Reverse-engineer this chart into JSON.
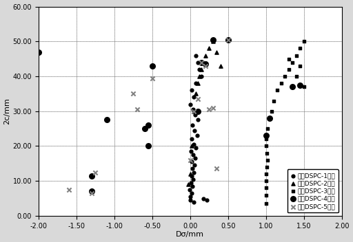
{
  "title": "",
  "xlabel": "Dσ/mm",
  "ylabel": "2c/mm",
  "xlim": [
    -2.0,
    2.0
  ],
  "ylim": [
    0.0,
    60.0
  ],
  "xticks": [
    -2.0,
    -1.5,
    -1.0,
    -0.5,
    0.0,
    0.5,
    1.0,
    1.5,
    2.0
  ],
  "yticks": [
    0.0,
    10.0,
    20.0,
    30.0,
    40.0,
    50.0,
    60.0
  ],
  "xtick_labels": [
    "-2.00",
    "-1.50",
    "-1.00",
    "-0.50",
    "0.00",
    "0.50",
    "1.00",
    "1.50",
    "2.00"
  ],
  "ytick_labels": [
    "0.00",
    "10.00",
    "20.00",
    "30.00",
    "40.00",
    "50.00",
    "60.00"
  ],
  "legend_labels": [
    "试样DSPC-1数据",
    "试样DSPC-2数据",
    "试样DSPC-3数据",
    "试样DSPC-4数据",
    "试样DSPC-5数据"
  ],
  "bg_color": "#d9d9d9",
  "plot_bg": "#ffffff",
  "series1_marker": "o",
  "series1_size": 12,
  "series1_x": [
    0.0,
    0.0,
    0.02,
    -0.01,
    0.03,
    0.01,
    0.04,
    0.02,
    0.05,
    0.03,
    0.06,
    0.02,
    0.07,
    0.04,
    0.01,
    0.08,
    0.05,
    0.02,
    0.09,
    0.06,
    0.03,
    0.1,
    0.07,
    0.04,
    0.0,
    0.05,
    0.02,
    0.08,
    0.15,
    0.12,
    0.1,
    0.08,
    0.05,
    0.18,
    0.22
  ],
  "series1_y": [
    4.5,
    5.5,
    6.5,
    7.5,
    8.5,
    9.5,
    10.5,
    11.5,
    12.5,
    13.5,
    14.5,
    15.5,
    16.5,
    17.5,
    18.5,
    19.5,
    20.5,
    22.0,
    23.0,
    24.5,
    26.0,
    27.5,
    29.0,
    30.5,
    32.0,
    34.0,
    36.0,
    38.0,
    40.0,
    42.0,
    44.0,
    46.0,
    4.0,
    5.0,
    4.5
  ],
  "series2_marker": "^",
  "series2_size": 14,
  "series2_x": [
    -0.02,
    0.0,
    0.02,
    0.05,
    0.08,
    0.1,
    0.12,
    0.15,
    0.18,
    0.2,
    0.25,
    0.3,
    0.35,
    0.4
  ],
  "series2_y": [
    9.0,
    12.0,
    20.0,
    30.0,
    35.0,
    38.0,
    40.0,
    42.0,
    44.0,
    46.0,
    48.0,
    50.0,
    47.0,
    43.0
  ],
  "series3_marker": "s",
  "series3_size": 12,
  "series3_x": [
    1.0,
    1.0,
    1.0,
    1.0,
    1.0,
    1.01,
    1.02,
    1.01,
    1.0,
    1.0,
    1.02,
    1.05,
    1.08,
    1.1,
    1.15,
    1.2,
    1.25,
    1.3,
    1.35,
    1.4,
    1.45,
    1.5,
    1.3,
    1.4,
    1.5,
    1.45
  ],
  "series3_y": [
    3.5,
    6.0,
    8.0,
    10.0,
    12.0,
    14.0,
    16.0,
    18.0,
    20.0,
    22.0,
    25.0,
    28.0,
    30.0,
    33.0,
    36.0,
    38.0,
    40.0,
    42.0,
    44.0,
    46.0,
    48.0,
    50.0,
    45.0,
    40.0,
    37.0,
    43.0
  ],
  "series4_marker": "o",
  "series4_size": 30,
  "series4_x": [
    -2.0,
    -1.3,
    -1.3,
    -1.1,
    -0.55,
    -0.55,
    -0.5,
    -0.6,
    0.1,
    0.15,
    0.2,
    0.3,
    0.5,
    1.0,
    1.05,
    1.35,
    1.45
  ],
  "series4_y": [
    47.0,
    7.0,
    11.5,
    27.5,
    26.0,
    20.0,
    43.0,
    25.0,
    30.0,
    44.0,
    43.5,
    50.5,
    50.5,
    23.0,
    28.0,
    37.0,
    37.5
  ],
  "series5_marker": "x",
  "series5_size": 20,
  "series5_x": [
    -1.6,
    -1.3,
    -1.25,
    -0.75,
    -0.7,
    -0.5,
    0.0,
    0.05,
    0.1,
    0.15,
    0.2,
    0.25,
    0.3,
    0.35,
    0.5
  ],
  "series5_y": [
    7.5,
    6.5,
    12.5,
    35.0,
    30.5,
    39.5,
    16.0,
    30.0,
    33.5,
    44.0,
    43.0,
    30.5,
    31.0,
    13.5,
    50.5
  ]
}
